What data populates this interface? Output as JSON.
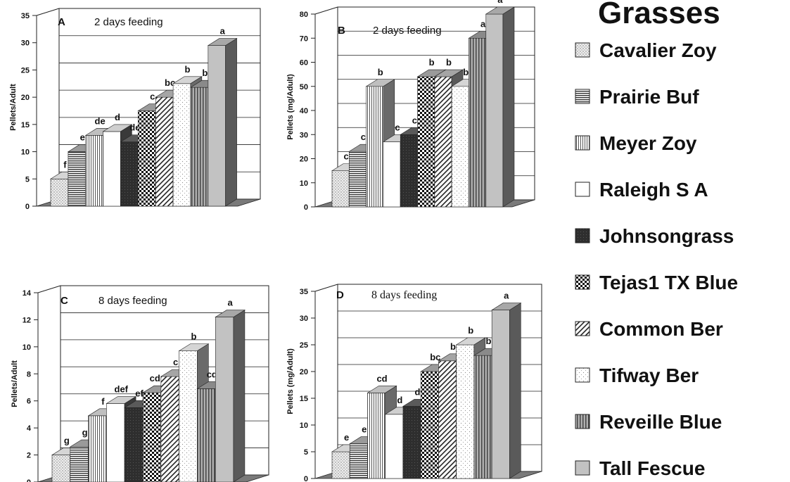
{
  "legend": {
    "title": "Grasses",
    "entries": [
      {
        "name": "Cavalier Zoy",
        "pattern": "dots",
        "color": "#e4e4e4"
      },
      {
        "name": "Prairie Buf",
        "pattern": "hlines",
        "color": "#cfcfcf"
      },
      {
        "name": "Meyer Zoy",
        "pattern": "vlines",
        "color": "#ffffff"
      },
      {
        "name": "Raleigh S A",
        "pattern": "none",
        "color": "#ffffff"
      },
      {
        "name": "Johnsongrass",
        "pattern": "dark",
        "color": "#333333"
      },
      {
        "name": "Tejas1 TX Blue",
        "pattern": "checker",
        "color": "#ffffff"
      },
      {
        "name": "Common Ber",
        "pattern": "diag",
        "color": "#ffffff"
      },
      {
        "name": "Tifway Ber",
        "pattern": "sparse",
        "color": "#ffffff"
      },
      {
        "name": "Reveille Blue",
        "pattern": "vthick",
        "color": "#999999"
      },
      {
        "name": "Tall Fescue",
        "pattern": "none",
        "color": "#bdbdbd"
      }
    ]
  },
  "chart_data": [
    {
      "type": "bar",
      "panel": "A",
      "title": "2 days feeding",
      "ylabel": "Pellets/Adult",
      "ylim": [
        0,
        35
      ],
      "yticks": [
        0,
        5,
        10,
        15,
        20,
        25,
        30,
        35
      ],
      "categories": [
        "Cavalier Zoy",
        "Prairie Buf",
        "Meyer Zoy",
        "Raleigh S A",
        "Johnsongrass",
        "Tejas1 TX Blue",
        "Common Ber",
        "Tifway Ber",
        "Reveille Blue",
        "Tall Fescue"
      ],
      "values": [
        5,
        10,
        13,
        13.7,
        11.8,
        17.5,
        20,
        22.5,
        21.8,
        29.5
      ],
      "labels": [
        "f",
        "e",
        "de",
        "d",
        "de",
        "c",
        "bc",
        "b",
        "b",
        "a"
      ]
    },
    {
      "type": "bar",
      "panel": "B",
      "title": "2 days feeding",
      "ylabel": "Pellets (mg/Adult)",
      "ylim": [
        0,
        80
      ],
      "yticks": [
        0,
        10,
        20,
        30,
        40,
        50,
        60,
        70,
        80
      ],
      "categories": [
        "Cavalier Zoy",
        "Prairie Buf",
        "Meyer Zoy",
        "Raleigh S A",
        "Johnsongrass",
        "Tejas1 TX Blue",
        "Common Ber",
        "Tifway Ber",
        "Reveille Blue",
        "Tall Fescue"
      ],
      "values": [
        15,
        23,
        50,
        27,
        30,
        54,
        54,
        50,
        70,
        80
      ],
      "labels": [
        "c",
        "c",
        "b",
        "c",
        "c",
        "b",
        "b",
        "b",
        "a",
        "a"
      ]
    },
    {
      "type": "bar",
      "panel": "C",
      "title": "8 days feeding",
      "ylabel": "Pellets/Adult",
      "ylim": [
        0,
        14
      ],
      "yticks": [
        0,
        2,
        4,
        6,
        8,
        10,
        12,
        14
      ],
      "categories": [
        "Cavalier Zoy",
        "Prairie Buf",
        "Meyer Zoy",
        "Raleigh S A",
        "Johnsongrass",
        "Tejas1 TX Blue",
        "Common Ber",
        "Tifway Ber",
        "Reveille Blue",
        "Tall Fescue"
      ],
      "values": [
        2,
        2.6,
        4.9,
        5.8,
        5.5,
        6.6,
        7.8,
        9.7,
        6.9,
        12.2
      ],
      "labels": [
        "g",
        "g",
        "f",
        "def",
        "ef",
        "cde",
        "c",
        "b",
        "cd",
        "a"
      ]
    },
    {
      "type": "bar",
      "panel": "D",
      "title": "8 days feeding",
      "ylabel": "Pellets (mg/Adult)",
      "ylim": [
        0,
        35
      ],
      "yticks": [
        0,
        5,
        10,
        15,
        20,
        25,
        30,
        35
      ],
      "categories": [
        "Cavalier Zoy",
        "Prairie Buf",
        "Meyer Zoy",
        "Raleigh S A",
        "Johnsongrass",
        "Tejas1 TX Blue",
        "Common Ber",
        "Tifway Ber",
        "Reveille Blue",
        "Tall Fescue"
      ],
      "values": [
        5,
        6.5,
        16,
        12,
        13.5,
        20,
        22,
        25,
        23,
        31.5
      ],
      "labels": [
        "e",
        "e",
        "cd",
        "d",
        "d",
        "bc",
        "b",
        "b",
        "b",
        "a"
      ]
    }
  ]
}
